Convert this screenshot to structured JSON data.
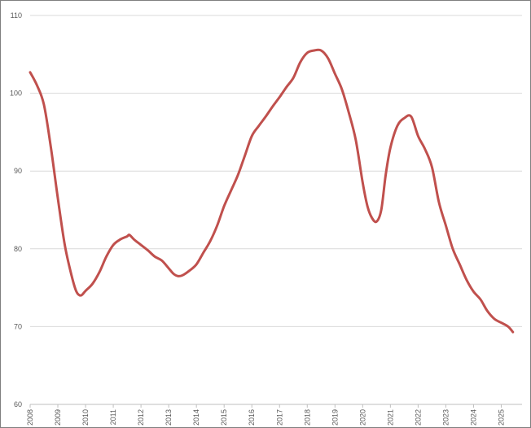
{
  "chart_data": {
    "type": "line",
    "title": "",
    "xlabel": "",
    "ylabel": "",
    "ylim": [
      60,
      110
    ],
    "yticks": [
      "60",
      "70",
      "80",
      "90",
      "100",
      "110"
    ],
    "xticks": [
      "2008",
      "2009",
      "2010",
      "2011",
      "2012",
      "2013",
      "2014",
      "2015",
      "2016",
      "2017",
      "2018",
      "2019",
      "2020",
      "2021",
      "2022",
      "2023",
      "2024",
      "2025"
    ],
    "xlim": [
      2008,
      2025.75
    ],
    "grid": "horizontal",
    "legend": "none",
    "line_color": "#c0504d",
    "grid_color": "#d9d9d9",
    "series": [
      {
        "points": [
          [
            2008.0,
            102.7
          ],
          [
            2008.25,
            101.0
          ],
          [
            2008.5,
            98.5
          ],
          [
            2008.75,
            93.0
          ],
          [
            2009.0,
            86.5
          ],
          [
            2009.25,
            80.5
          ],
          [
            2009.5,
            76.5
          ],
          [
            2009.67,
            74.5
          ],
          [
            2009.83,
            74.0
          ],
          [
            2010.0,
            74.6
          ],
          [
            2010.25,
            75.5
          ],
          [
            2010.5,
            77.0
          ],
          [
            2010.75,
            79.0
          ],
          [
            2011.0,
            80.5
          ],
          [
            2011.25,
            81.2
          ],
          [
            2011.5,
            81.6
          ],
          [
            2011.58,
            81.8
          ],
          [
            2011.75,
            81.2
          ],
          [
            2012.0,
            80.5
          ],
          [
            2012.25,
            79.8
          ],
          [
            2012.5,
            79.0
          ],
          [
            2012.75,
            78.5
          ],
          [
            2013.0,
            77.5
          ],
          [
            2013.17,
            76.8
          ],
          [
            2013.33,
            76.5
          ],
          [
            2013.5,
            76.6
          ],
          [
            2013.75,
            77.2
          ],
          [
            2014.0,
            78.0
          ],
          [
            2014.25,
            79.5
          ],
          [
            2014.5,
            81.0
          ],
          [
            2014.75,
            83.0
          ],
          [
            2015.0,
            85.5
          ],
          [
            2015.25,
            87.5
          ],
          [
            2015.5,
            89.5
          ],
          [
            2015.75,
            92.0
          ],
          [
            2016.0,
            94.5
          ],
          [
            2016.25,
            95.8
          ],
          [
            2016.5,
            97.0
          ],
          [
            2016.75,
            98.3
          ],
          [
            2017.0,
            99.5
          ],
          [
            2017.25,
            100.8
          ],
          [
            2017.5,
            102.0
          ],
          [
            2017.75,
            104.0
          ],
          [
            2018.0,
            105.2
          ],
          [
            2018.25,
            105.5
          ],
          [
            2018.5,
            105.5
          ],
          [
            2018.75,
            104.5
          ],
          [
            2019.0,
            102.5
          ],
          [
            2019.25,
            100.5
          ],
          [
            2019.5,
            97.5
          ],
          [
            2019.75,
            94.0
          ],
          [
            2020.0,
            88.5
          ],
          [
            2020.17,
            85.5
          ],
          [
            2020.33,
            84.0
          ],
          [
            2020.5,
            83.5
          ],
          [
            2020.67,
            85.0
          ],
          [
            2020.83,
            89.5
          ],
          [
            2021.0,
            93.0
          ],
          [
            2021.25,
            95.8
          ],
          [
            2021.5,
            96.8
          ],
          [
            2021.75,
            97.0
          ],
          [
            2022.0,
            94.5
          ],
          [
            2022.25,
            92.8
          ],
          [
            2022.5,
            90.5
          ],
          [
            2022.75,
            86.0
          ],
          [
            2023.0,
            83.0
          ],
          [
            2023.25,
            80.0
          ],
          [
            2023.5,
            78.0
          ],
          [
            2023.75,
            76.0
          ],
          [
            2024.0,
            74.5
          ],
          [
            2024.25,
            73.5
          ],
          [
            2024.5,
            72.0
          ],
          [
            2024.75,
            71.0
          ],
          [
            2025.0,
            70.5
          ],
          [
            2025.25,
            70.0
          ],
          [
            2025.42,
            69.3
          ]
        ]
      }
    ]
  }
}
